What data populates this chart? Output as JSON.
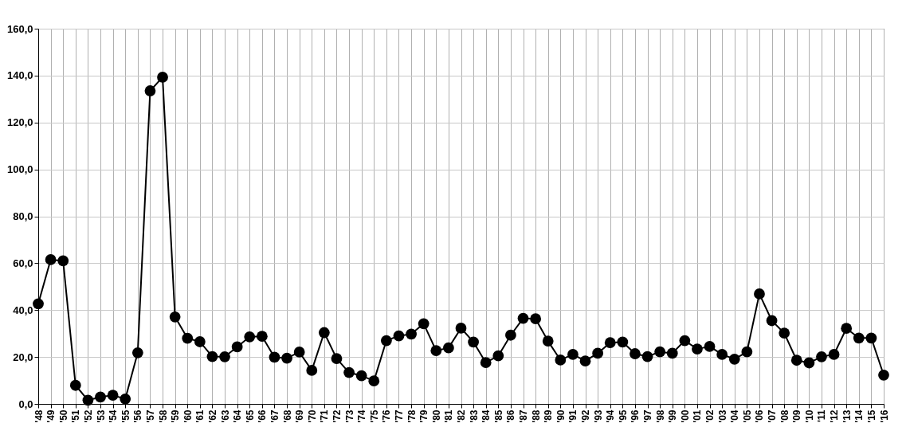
{
  "chart_data": {
    "type": "line",
    "categories": [
      "'48",
      "'49",
      "'50",
      "'51",
      "'52",
      "'53",
      "'54",
      "'55",
      "'56",
      "'57",
      "'58",
      "'59",
      "'60",
      "'61",
      "'62",
      "'63",
      "'64",
      "'65",
      "'66",
      "'67",
      "'68",
      "'69",
      "'70",
      "'71",
      "'72",
      "'73",
      "'74",
      "'75",
      "'76",
      "'77",
      "'78",
      "'79",
      "'80",
      "'81",
      "'82",
      "'83",
      "'84",
      "'85",
      "'86",
      "'87",
      "'88",
      "'89",
      "'90",
      "'91",
      "'92",
      "'93",
      "'94",
      "'95",
      "'96",
      "'97",
      "'98",
      "'99",
      "'00",
      "'01",
      "'02",
      "'03",
      "'04",
      "'05",
      "'06",
      "'07",
      "'08",
      "'09",
      "'10",
      "'11",
      "'12",
      "'13",
      "'14",
      "'15",
      "'16"
    ],
    "series": [
      {
        "color": "#000000",
        "values": [
          42.7,
          61.5,
          61.0,
          7.9,
          1.6,
          2.9,
          3.7,
          2.1,
          21.8,
          133.5,
          139.3,
          37.1,
          28.0,
          26.5,
          20.2,
          20.1,
          24.3,
          28.6,
          28.8,
          19.9,
          19.5,
          22.1,
          14.3,
          30.4,
          19.3,
          13.4,
          12.0,
          9.8,
          27.0,
          29.0,
          29.8,
          34.2,
          22.7,
          23.9,
          32.3,
          26.4,
          17.6,
          20.5,
          29.3,
          36.5,
          36.3,
          26.8,
          18.7,
          21.1,
          18.3,
          21.6,
          26.1,
          26.4,
          21.4,
          20.2,
          22.2,
          21.6,
          27.0,
          23.4,
          24.5,
          21.1,
          19.1,
          22.2,
          46.9,
          35.5,
          30.2,
          18.6,
          17.5,
          20.1,
          21.1,
          32.2,
          28.1,
          28.1,
          12.3
        ]
      }
    ],
    "ylim": [
      0,
      160
    ],
    "yticks": [
      {
        "value": 0,
        "label": "0,0"
      },
      {
        "value": 20,
        "label": "20,0"
      },
      {
        "value": 40,
        "label": "40,0"
      },
      {
        "value": 60,
        "label": "60,0"
      },
      {
        "value": 80,
        "label": "80,0"
      },
      {
        "value": 100,
        "label": "100,0"
      },
      {
        "value": 120,
        "label": "120,0"
      },
      {
        "value": 140,
        "label": "140,0"
      },
      {
        "value": 160,
        "label": "160,0"
      }
    ],
    "grid": true,
    "marker": "circle",
    "line_style": "solid"
  }
}
